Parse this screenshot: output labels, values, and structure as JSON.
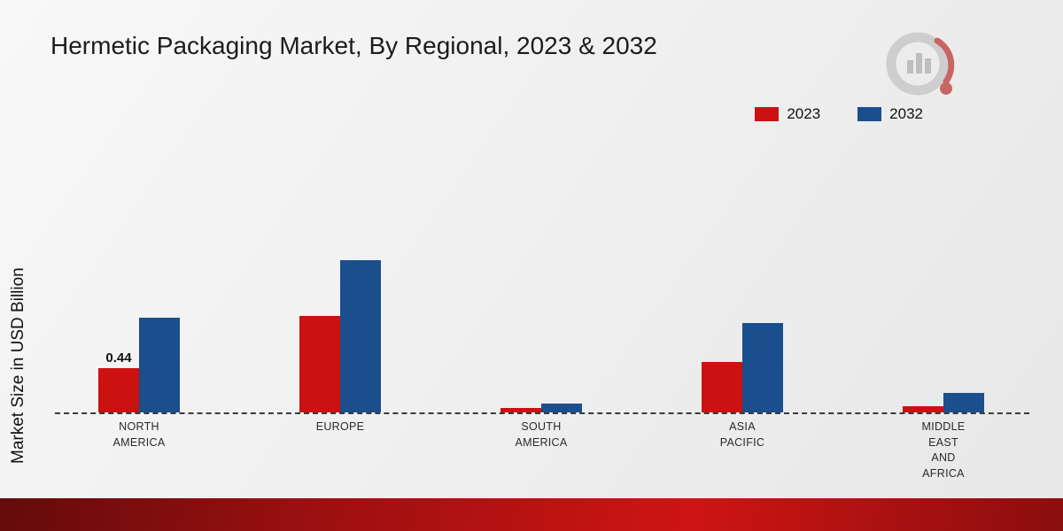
{
  "title": "Hermetic Packaging Market, By Regional, 2023 & 2032",
  "y_axis_label": "Market Size in USD Billion",
  "legend": [
    {
      "label": "2023",
      "color": "#cc1111"
    },
    {
      "label": "2032",
      "color": "#1a4e8d"
    }
  ],
  "chart_data": {
    "type": "bar",
    "title": "Hermetic Packaging Market, By Regional, 2023 & 2032",
    "ylabel": "Market Size in USD Billion",
    "categories": [
      "NORTH AMERICA",
      "EUROPE",
      "SOUTH AMERICA",
      "ASIA PACIFIC",
      "MIDDLE EAST AND AFRICA"
    ],
    "category_label_lines": [
      [
        "NORTH",
        "AMERICA"
      ],
      [
        "EUROPE"
      ],
      [
        "SOUTH",
        "AMERICA"
      ],
      [
        "ASIA",
        "PACIFIC"
      ],
      [
        "MIDDLE",
        "EAST",
        "AND",
        "AFRICA"
      ]
    ],
    "series": [
      {
        "name": "2023",
        "color": "#cc1111",
        "values": [
          0.44,
          0.96,
          0.04,
          0.5,
          0.06
        ]
      },
      {
        "name": "2032",
        "color": "#1a4e8d",
        "values": [
          0.94,
          1.51,
          0.09,
          0.89,
          0.19
        ]
      }
    ],
    "annotations": [
      {
        "series_index": 0,
        "category_index": 0,
        "text": "0.44"
      }
    ],
    "ylim": [
      0,
      1.6
    ],
    "grid": false,
    "legend_position": "top-right",
    "baseline_style": "dashed"
  },
  "branding": {
    "logo_name": "market-research-logo"
  }
}
